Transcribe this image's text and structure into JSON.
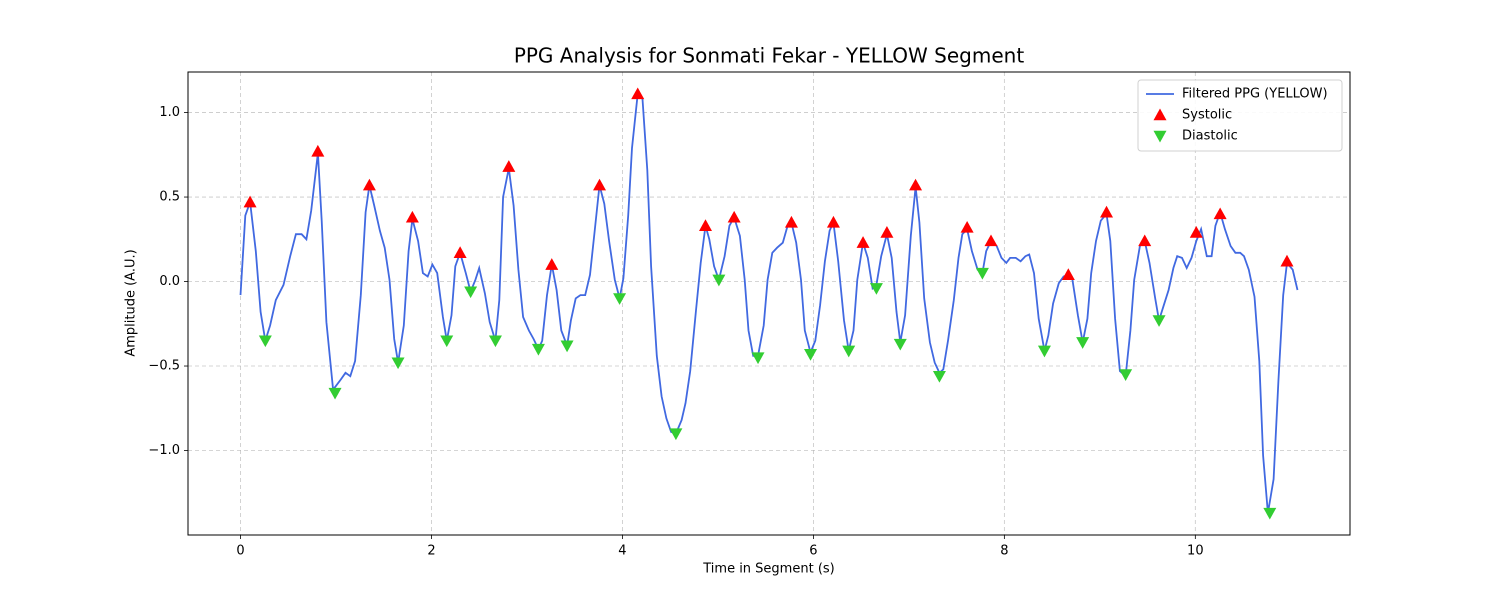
{
  "chart_data": {
    "type": "line",
    "title": "PPG Analysis for Sonmati Fekar - YELLOW Segment",
    "xlabel": "Time in Segment (s)",
    "ylabel": "Amplitude (A.U.)",
    "xlim": [
      -0.55,
      11.62
    ],
    "ylim": [
      -1.5,
      1.24
    ],
    "xticks": [
      0,
      2,
      4,
      6,
      8,
      10
    ],
    "yticks": [
      {
        "value": -1,
        "label": "−1.0"
      },
      {
        "value": -0.5,
        "label": "−0.5"
      },
      {
        "value": 0,
        "label": "0.0"
      },
      {
        "value": 0.5,
        "label": "0.5"
      },
      {
        "value": 1,
        "label": "1.0"
      }
    ],
    "grid": true,
    "legend": "upper right",
    "series": [
      {
        "name": "Filtered PPG (YELLOW)",
        "color": "#4169e1",
        "marker": "none",
        "x": [
          0,
          0.05,
          0.1,
          0.16,
          0.21,
          0.26,
          0.31,
          0.37,
          0.45,
          0.52,
          0.58,
          0.64,
          0.69,
          0.74,
          0.81,
          0.85,
          0.9,
          0.97,
          1.05,
          1.1,
          1.15,
          1.2,
          1.26,
          1.31,
          1.35,
          1.4,
          1.46,
          1.51,
          1.56,
          1.61,
          1.65,
          1.71,
          1.76,
          1.8,
          1.86,
          1.91,
          1.96,
          2.01,
          2.06,
          2.12,
          2.16,
          2.21,
          2.25,
          2.3,
          2.36,
          2.41,
          2.46,
          2.5,
          2.56,
          2.61,
          2.67,
          2.71,
          2.75,
          2.81,
          2.86,
          2.91,
          2.96,
          3.02,
          3.07,
          3.12,
          3.16,
          3.21,
          3.26,
          3.31,
          3.36,
          3.42,
          3.46,
          3.51,
          3.56,
          3.61,
          3.66,
          3.71,
          3.76,
          3.81,
          3.86,
          3.92,
          3.97,
          4.01,
          4.06,
          4.1,
          4.16,
          4.21,
          4.26,
          4.3,
          4.36,
          4.41,
          4.46,
          4.51,
          4.56,
          4.62,
          4.66,
          4.71,
          4.77,
          4.82,
          4.87,
          4.91,
          4.96,
          5.01,
          5.07,
          5.12,
          5.17,
          5.23,
          5.28,
          5.32,
          5.37,
          5.42,
          5.48,
          5.52,
          5.57,
          5.62,
          5.68,
          5.73,
          5.77,
          5.82,
          5.87,
          5.91,
          5.97,
          6.02,
          6.07,
          6.12,
          6.17,
          6.21,
          6.26,
          6.32,
          6.37,
          6.42,
          6.46,
          6.52,
          6.57,
          6.62,
          6.66,
          6.71,
          6.77,
          6.82,
          6.87,
          6.91,
          6.96,
          7.02,
          7.07,
          7.11,
          7.16,
          7.22,
          7.27,
          7.32,
          7.36,
          7.41,
          7.47,
          7.52,
          7.56,
          7.61,
          7.66,
          7.72,
          7.77,
          7.81,
          7.86,
          7.92,
          7.97,
          8.02,
          8.06,
          8.12,
          8.17,
          8.22,
          8.26,
          8.31,
          8.36,
          8.42,
          8.46,
          8.51,
          8.57,
          8.62,
          8.67,
          8.71,
          8.77,
          8.82,
          8.87,
          8.91,
          8.96,
          9.01,
          9.07,
          9.11,
          9.16,
          9.21,
          9.27,
          9.32,
          9.36,
          9.42,
          9.47,
          9.52,
          9.58,
          9.62,
          9.67,
          9.72,
          9.77,
          9.81,
          9.86,
          9.91,
          9.96,
          10.01,
          10.06,
          10.12,
          10.17,
          10.21,
          10.26,
          10.31,
          10.37,
          10.42,
          10.47,
          10.51,
          10.56,
          10.62,
          10.67,
          10.71,
          10.76,
          10.82,
          10.87,
          10.92,
          10.96,
          11.02,
          11.07
        ],
        "values": [
          -0.08,
          0.39,
          0.47,
          0.18,
          -0.18,
          -0.35,
          -0.26,
          -0.11,
          -0.02,
          0.15,
          0.28,
          0.28,
          0.25,
          0.42,
          0.76,
          0.36,
          -0.24,
          -0.64,
          -0.58,
          -0.54,
          -0.56,
          -0.47,
          -0.08,
          0.41,
          0.57,
          0.45,
          0.3,
          0.2,
          0.01,
          -0.34,
          -0.48,
          -0.26,
          0.18,
          0.37,
          0.24,
          0.05,
          0.03,
          0.1,
          0.05,
          -0.21,
          -0.35,
          -0.2,
          0.09,
          0.17,
          0.05,
          -0.06,
          0.01,
          0.08,
          -0.07,
          -0.24,
          -0.35,
          -0.11,
          0.5,
          0.67,
          0.45,
          0.07,
          -0.21,
          -0.29,
          -0.34,
          -0.4,
          -0.35,
          -0.08,
          0.1,
          -0.05,
          -0.29,
          -0.38,
          -0.23,
          -0.1,
          -0.08,
          -0.08,
          0.04,
          0.3,
          0.57,
          0.46,
          0.24,
          0.01,
          -0.1,
          0.02,
          0.39,
          0.79,
          1.11,
          1.08,
          0.66,
          0.09,
          -0.44,
          -0.68,
          -0.81,
          -0.89,
          -0.9,
          -0.82,
          -0.72,
          -0.53,
          -0.17,
          0.11,
          0.33,
          0.25,
          0.09,
          0.01,
          0.15,
          0.33,
          0.38,
          0.27,
          0.01,
          -0.29,
          -0.44,
          -0.44,
          -0.26,
          0.01,
          0.17,
          0.2,
          0.23,
          0.33,
          0.35,
          0.23,
          0.01,
          -0.29,
          -0.42,
          -0.35,
          -0.14,
          0.12,
          0.3,
          0.35,
          0.12,
          -0.23,
          -0.41,
          -0.29,
          0.01,
          0.23,
          0.14,
          -0.04,
          -0.02,
          0.15,
          0.28,
          0.14,
          -0.18,
          -0.36,
          -0.2,
          0.27,
          0.56,
          0.35,
          -0.1,
          -0.36,
          -0.48,
          -0.54,
          -0.52,
          -0.35,
          -0.11,
          0.14,
          0.28,
          0.31,
          0.18,
          0.07,
          0.05,
          0.18,
          0.24,
          0.21,
          0.14,
          0.11,
          0.14,
          0.14,
          0.12,
          0.15,
          0.16,
          0.05,
          -0.22,
          -0.41,
          -0.32,
          -0.13,
          -0.01,
          0.03,
          0.04,
          0.02,
          -0.2,
          -0.36,
          -0.22,
          0.05,
          0.24,
          0.36,
          0.4,
          0.24,
          -0.22,
          -0.53,
          -0.56,
          -0.29,
          0.01,
          0.21,
          0.24,
          0.11,
          -0.1,
          -0.23,
          -0.14,
          -0.05,
          0.08,
          0.15,
          0.14,
          0.08,
          0.14,
          0.24,
          0.31,
          0.15,
          0.15,
          0.33,
          0.41,
          0.31,
          0.21,
          0.17,
          0.17,
          0.15,
          0.07,
          -0.09,
          -0.47,
          -1.03,
          -1.37,
          -1.17,
          -0.59,
          -0.08,
          0.11,
          0.07,
          -0.05
        ]
      },
      {
        "name": "Systolic",
        "color": "#ff0000",
        "marker": "triangle-up",
        "x": [
          0.1,
          0.81,
          1.35,
          1.8,
          2.3,
          2.81,
          3.26,
          3.76,
          4.16,
          4.87,
          5.17,
          5.77,
          6.21,
          6.52,
          6.77,
          7.07,
          7.61,
          7.86,
          8.67,
          9.07,
          9.47,
          10.01,
          10.26,
          10.96
        ],
        "values": [
          0.47,
          0.77,
          0.57,
          0.38,
          0.17,
          0.68,
          0.1,
          0.57,
          1.11,
          0.33,
          0.38,
          0.35,
          0.35,
          0.23,
          0.29,
          0.57,
          0.32,
          0.24,
          0.04,
          0.41,
          0.24,
          0.29,
          0.4,
          0.12
        ]
      },
      {
        "name": "Diastolic",
        "color": "#32cd32",
        "marker": "triangle-down",
        "x": [
          0.26,
          0.99,
          1.65,
          2.16,
          2.41,
          2.67,
          3.12,
          3.42,
          3.97,
          4.56,
          5.01,
          5.42,
          5.97,
          6.37,
          6.66,
          6.91,
          7.32,
          7.77,
          8.42,
          8.82,
          9.27,
          9.62,
          10.78
        ],
        "values": [
          -0.35,
          -0.66,
          -0.48,
          -0.35,
          -0.06,
          -0.35,
          -0.4,
          -0.38,
          -0.1,
          -0.9,
          0.01,
          -0.45,
          -0.43,
          -0.41,
          -0.04,
          -0.37,
          -0.56,
          0.05,
          -0.41,
          -0.36,
          -0.55,
          -0.23,
          -1.37
        ]
      }
    ]
  }
}
